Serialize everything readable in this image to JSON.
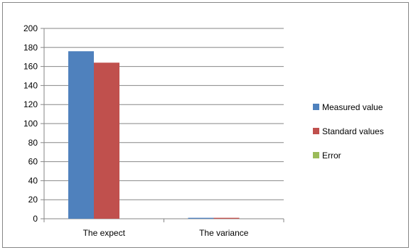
{
  "chart_data": {
    "type": "bar",
    "categories": [
      "The expect",
      "The variance"
    ],
    "series": [
      {
        "name": "Measured value",
        "color": "#4f81bd",
        "values": [
          176,
          1
        ]
      },
      {
        "name": "Standard values",
        "color": "#c0504d",
        "values": [
          164,
          1
        ]
      },
      {
        "name": "Error",
        "color": "#9bbb59",
        "values": [
          0,
          0
        ]
      }
    ],
    "ylim": [
      0,
      200
    ],
    "yticks": [
      0,
      20,
      40,
      60,
      80,
      100,
      120,
      140,
      160,
      180,
      200
    ],
    "grid": true,
    "legend_position": "right",
    "title": "",
    "xlabel": "",
    "ylabel": ""
  }
}
